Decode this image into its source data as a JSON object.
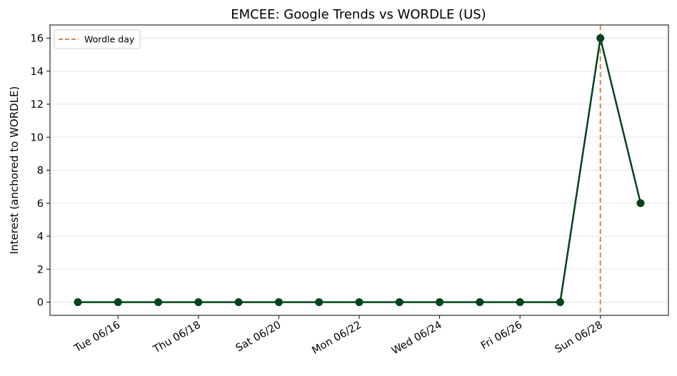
{
  "chart_data": {
    "type": "line",
    "title": "EMCEE: Google Trends vs WORDLE (US)",
    "xlabel": "",
    "ylabel": "Interest (anchored to WORDLE)",
    "x": [
      "06/15",
      "06/16",
      "06/17",
      "06/18",
      "06/19",
      "06/20",
      "06/21",
      "06/22",
      "06/23",
      "06/24",
      "06/25",
      "06/26",
      "06/27",
      "06/28",
      "06/29"
    ],
    "x_tick_labels": [
      {
        "x": "06/16",
        "label": "Tue 06/16"
      },
      {
        "x": "06/18",
        "label": "Thu 06/18"
      },
      {
        "x": "06/20",
        "label": "Sat 06/20"
      },
      {
        "x": "06/22",
        "label": "Mon 06/22"
      },
      {
        "x": "06/24",
        "label": "Wed 06/24"
      },
      {
        "x": "06/26",
        "label": "Fri 06/26"
      },
      {
        "x": "06/28",
        "label": "Sun 06/28"
      }
    ],
    "series": [
      {
        "values": [
          0,
          0,
          0,
          0,
          0,
          0,
          0,
          0,
          0,
          0,
          0,
          0,
          0,
          16,
          6
        ],
        "color": "#00441b"
      }
    ],
    "reference_lines": [
      {
        "orientation": "vertical",
        "x": "06/28",
        "label": "Wordle day",
        "style": "dashed",
        "color": "#cd8a5a"
      }
    ],
    "ylim": [
      -0.8,
      16.8
    ],
    "yticks": [
      0,
      2,
      4,
      6,
      8,
      10,
      12,
      14,
      16
    ],
    "grid": "horizontal",
    "legend": "top-left"
  }
}
